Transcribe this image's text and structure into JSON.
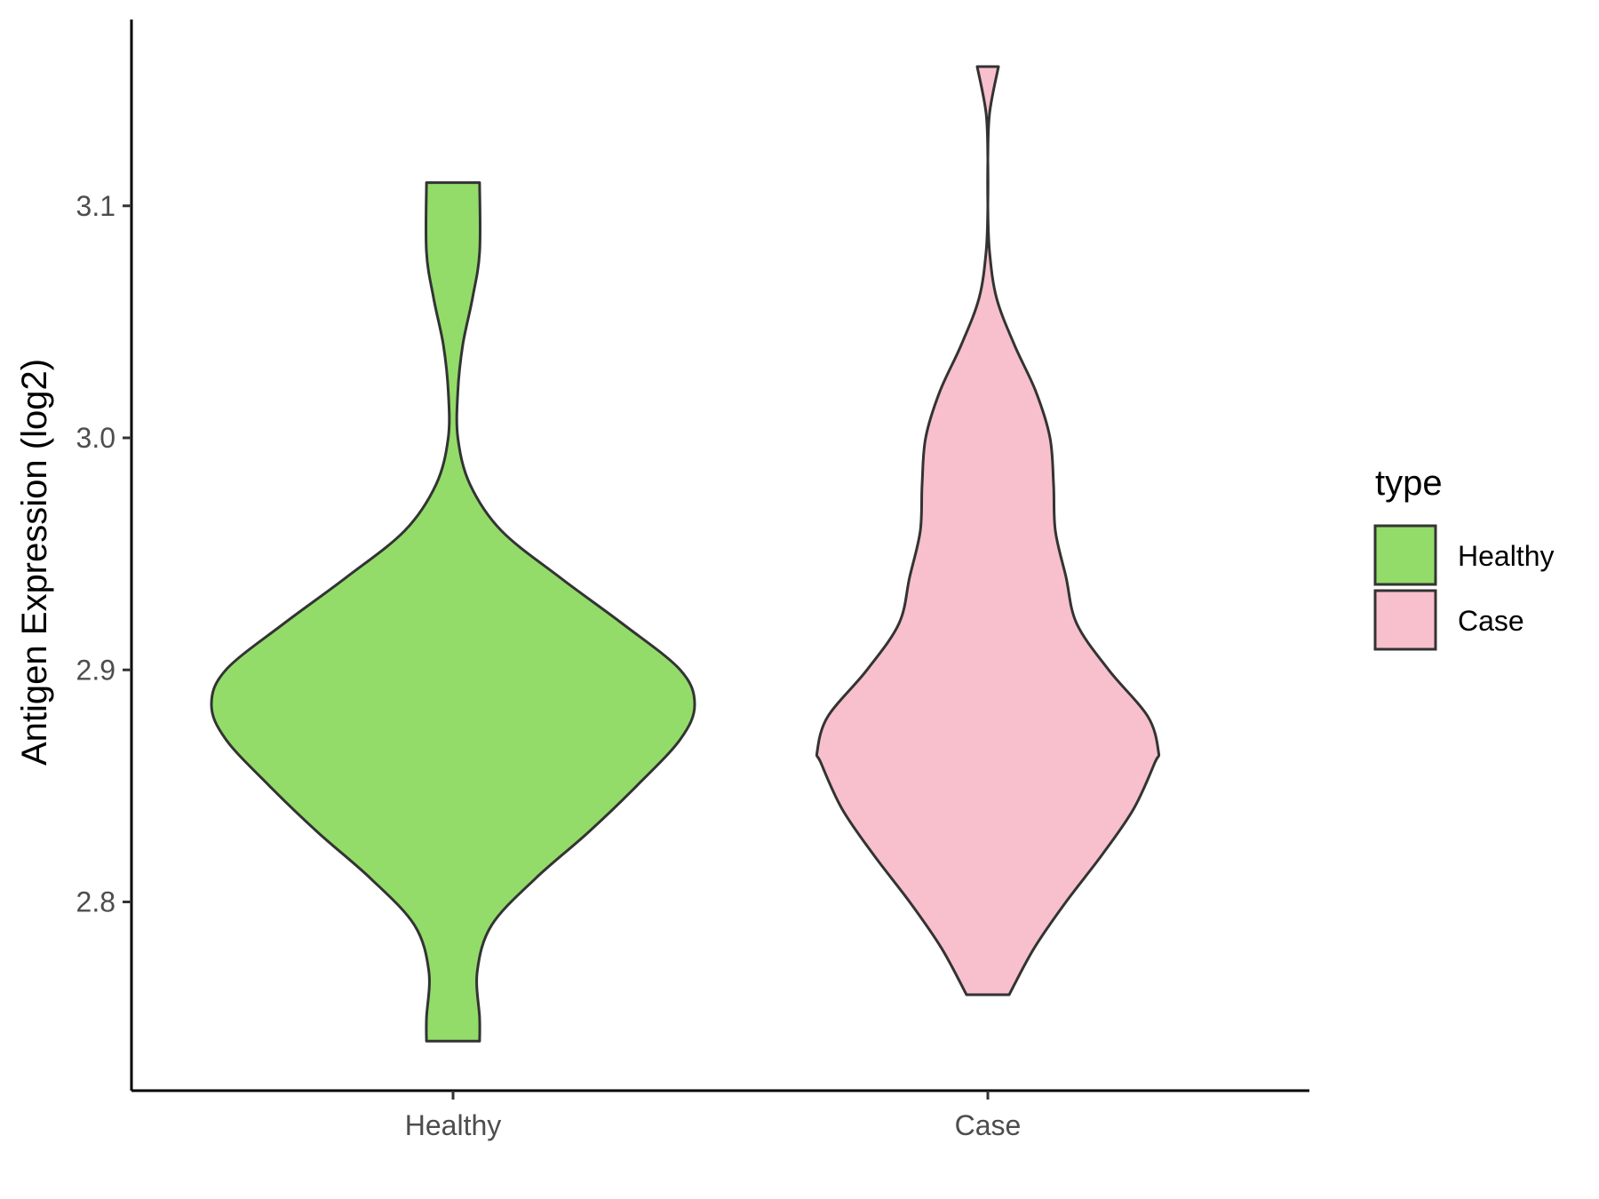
{
  "chart_data": {
    "type": "violin",
    "title": "",
    "xlabel": "",
    "ylabel": "Antigen Expression (log2)",
    "ylim": [
      2.72,
      3.18
    ],
    "yticks": [
      "2.8",
      "2.9",
      "3.0",
      "3.1"
    ],
    "grid": false,
    "categories": [
      "Healthy",
      "Case"
    ],
    "series": [
      {
        "name": "Healthy",
        "color": "#93dc6a",
        "min": 2.74,
        "max": 3.11,
        "density_profile": [
          [
            2.74,
            0.11
          ],
          [
            2.75,
            0.11
          ],
          [
            2.77,
            0.1
          ],
          [
            2.79,
            0.16
          ],
          [
            2.81,
            0.34
          ],
          [
            2.83,
            0.56
          ],
          [
            2.85,
            0.76
          ],
          [
            2.87,
            0.94
          ],
          [
            2.885,
            1.0
          ],
          [
            2.9,
            0.94
          ],
          [
            2.92,
            0.7
          ],
          [
            2.94,
            0.44
          ],
          [
            2.96,
            0.2
          ],
          [
            2.98,
            0.07
          ],
          [
            3.0,
            0.02
          ],
          [
            3.02,
            0.02
          ],
          [
            3.04,
            0.04
          ],
          [
            3.06,
            0.08
          ],
          [
            3.08,
            0.11
          ],
          [
            3.11,
            0.11
          ]
        ]
      },
      {
        "name": "Case",
        "color": "#f7c0cc",
        "min": 2.76,
        "max": 3.16,
        "density_profile": [
          [
            2.76,
            0.12
          ],
          [
            2.78,
            0.26
          ],
          [
            2.8,
            0.44
          ],
          [
            2.82,
            0.64
          ],
          [
            2.84,
            0.82
          ],
          [
            2.86,
            0.94
          ],
          [
            2.865,
            0.96
          ],
          [
            2.88,
            0.9
          ],
          [
            2.9,
            0.68
          ],
          [
            2.92,
            0.5
          ],
          [
            2.94,
            0.44
          ],
          [
            2.96,
            0.38
          ],
          [
            2.98,
            0.37
          ],
          [
            3.0,
            0.35
          ],
          [
            3.02,
            0.27
          ],
          [
            3.04,
            0.15
          ],
          [
            3.06,
            0.05
          ],
          [
            3.08,
            0.01
          ],
          [
            3.1,
            0.0
          ],
          [
            3.12,
            0.0
          ],
          [
            3.14,
            0.01
          ],
          [
            3.16,
            0.06
          ]
        ]
      }
    ],
    "legend": {
      "title": "type",
      "position": "right",
      "entries": [
        "Healthy",
        "Case"
      ]
    }
  }
}
